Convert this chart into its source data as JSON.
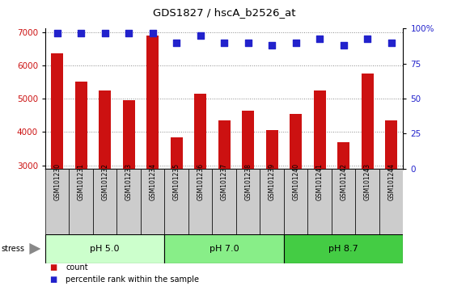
{
  "title": "GDS1827 / hscA_b2526_at",
  "samples": [
    "GSM101230",
    "GSM101231",
    "GSM101232",
    "GSM101233",
    "GSM101234",
    "GSM101235",
    "GSM101236",
    "GSM101237",
    "GSM101238",
    "GSM101239",
    "GSM101240",
    "GSM101241",
    "GSM101242",
    "GSM101243",
    "GSM101244"
  ],
  "counts": [
    6350,
    5500,
    5250,
    4950,
    6900,
    3850,
    5150,
    4350,
    4650,
    4050,
    4550,
    5250,
    3700,
    5750,
    4350
  ],
  "percentile_ranks": [
    97,
    97,
    97,
    97,
    97,
    90,
    95,
    90,
    90,
    88,
    90,
    93,
    88,
    93,
    90
  ],
  "bar_color": "#cc1111",
  "dot_color": "#2222cc",
  "ylim_left": [
    2900,
    7100
  ],
  "ylim_right": [
    0,
    100
  ],
  "yticks_left": [
    3000,
    4000,
    5000,
    6000,
    7000
  ],
  "yticks_right": [
    0,
    25,
    50,
    75,
    100
  ],
  "yticklabels_right": [
    "0",
    "25",
    "50",
    "75",
    "100%"
  ],
  "groups": [
    {
      "label": "pH 5.0",
      "start": 0,
      "end": 5,
      "color": "#ccffcc"
    },
    {
      "label": "pH 7.0",
      "start": 5,
      "end": 10,
      "color": "#88ee88"
    },
    {
      "label": "pH 8.7",
      "start": 10,
      "end": 15,
      "color": "#44cc44"
    }
  ],
  "stress_label": "stress",
  "grid_color": "#888888",
  "bar_width": 0.5,
  "dot_size": 35,
  "legend_count_label": "count",
  "legend_pct_label": "percentile rank within the sample"
}
